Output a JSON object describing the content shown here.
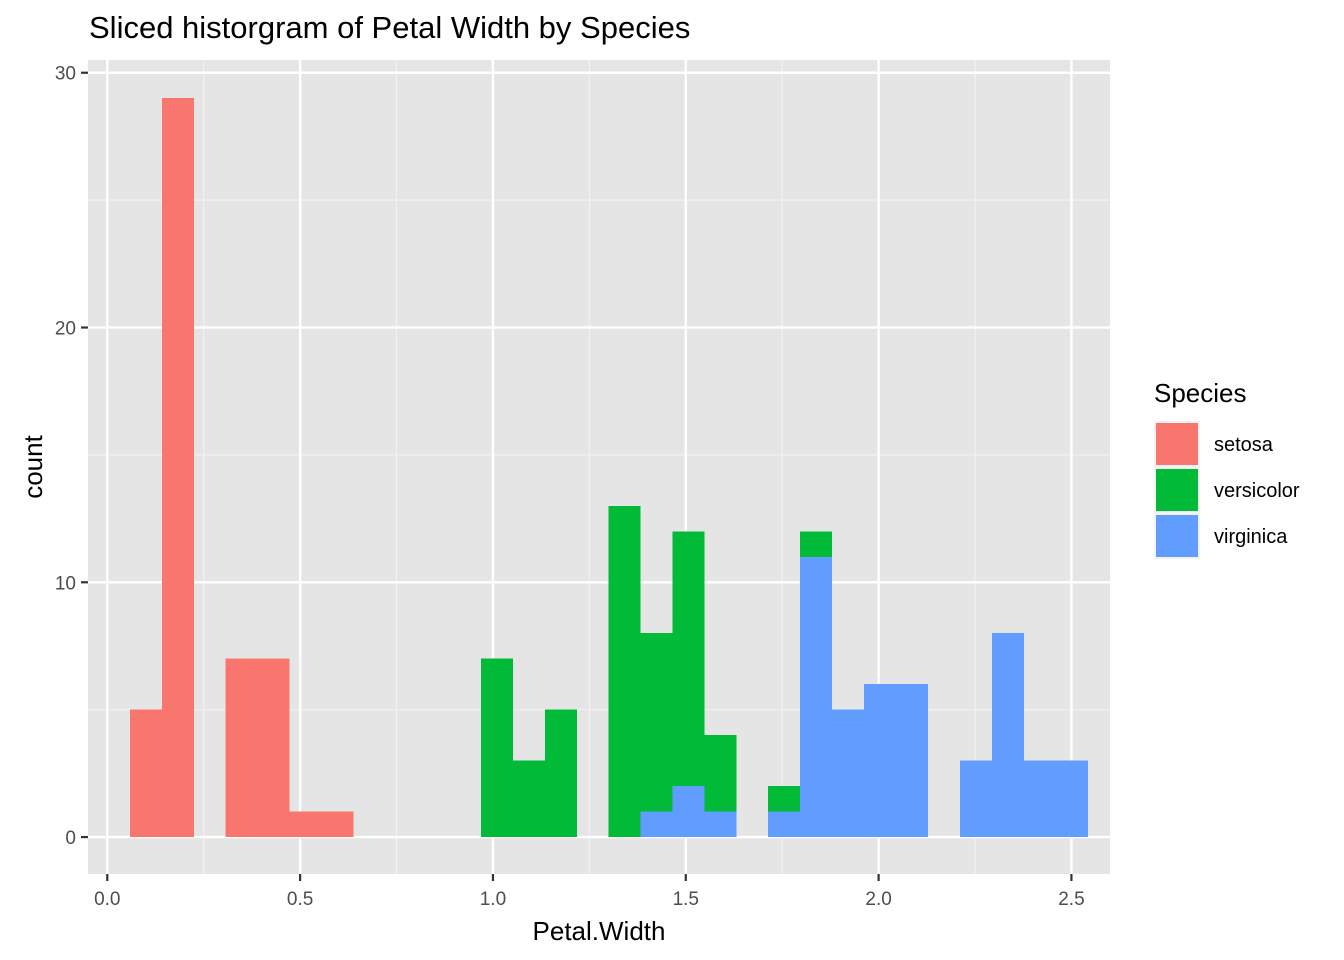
{
  "chart_data": {
    "type": "bar",
    "subtype": "stacked-histogram",
    "title": "Sliced historgram of Petal Width by Species",
    "xlabel": "Petal.Width",
    "ylabel": "count",
    "xlim": [
      -0.05,
      2.6
    ],
    "ylim": [
      -1.45,
      30.5
    ],
    "xticks": [
      0.0,
      0.5,
      1.0,
      1.5,
      2.0,
      2.5
    ],
    "xtick_labels": [
      "0.0",
      "0.5",
      "1.0",
      "1.5",
      "2.0",
      "2.5"
    ],
    "yticks": [
      0,
      10,
      20,
      30
    ],
    "ytick_labels": [
      "0",
      "10",
      "20",
      "30"
    ],
    "grid": true,
    "background": "#e5e5e5",
    "bin_width": 0.0828,
    "bin_centers": [
      0.1,
      0.183,
      0.348,
      0.431,
      0.514,
      0.597,
      1.01,
      1.093,
      1.176,
      1.341,
      1.424,
      1.507,
      1.59,
      1.755,
      1.838,
      1.921,
      2.004,
      2.087,
      2.252,
      2.335,
      2.418,
      2.501
    ],
    "legend": {
      "title": "Species",
      "position": "right"
    },
    "series": [
      {
        "name": "setosa",
        "color": "#F8766D",
        "values": [
          5,
          29,
          7,
          7,
          1,
          1,
          0,
          0,
          0,
          0,
          0,
          0,
          0,
          0,
          0,
          0,
          0,
          0,
          0,
          0,
          0,
          0
        ]
      },
      {
        "name": "versicolor",
        "color": "#00BA38",
        "values": [
          0,
          0,
          0,
          0,
          0,
          0,
          7,
          3,
          5,
          13,
          7,
          10,
          3,
          1,
          1,
          0,
          0,
          0,
          0,
          0,
          0,
          0
        ]
      },
      {
        "name": "virginica",
        "color": "#619CFF",
        "values": [
          0,
          0,
          0,
          0,
          0,
          0,
          0,
          0,
          0,
          0,
          1,
          2,
          1,
          1,
          11,
          5,
          6,
          6,
          3,
          8,
          3,
          3
        ]
      }
    ]
  }
}
